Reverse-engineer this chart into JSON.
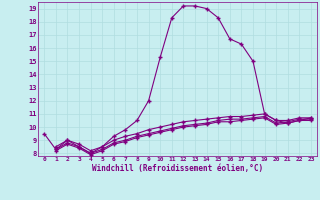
{
  "xlabel": "Windchill (Refroidissement éolien,°C)",
  "bg_color": "#c8eef0",
  "line_color": "#800080",
  "grid_color": "#b0dde0",
  "xlim": [
    -0.5,
    23.5
  ],
  "ylim": [
    7.8,
    19.5
  ],
  "yticks": [
    8,
    9,
    10,
    11,
    12,
    13,
    14,
    15,
    16,
    17,
    18,
    19
  ],
  "xticks": [
    0,
    1,
    2,
    3,
    4,
    5,
    6,
    7,
    8,
    9,
    10,
    11,
    12,
    13,
    14,
    15,
    16,
    17,
    18,
    19,
    20,
    21,
    22,
    23
  ],
  "line1_x": [
    0,
    1,
    2,
    3,
    4,
    5,
    6,
    7,
    8,
    9,
    10,
    11,
    12,
    13,
    14,
    15,
    16,
    17,
    18,
    19,
    20,
    21,
    22,
    23
  ],
  "line1_y": [
    9.5,
    8.3,
    9.0,
    8.5,
    8.0,
    8.5,
    9.3,
    9.8,
    10.5,
    12.0,
    15.3,
    18.3,
    19.2,
    19.2,
    19.0,
    18.3,
    16.7,
    16.3,
    15.0,
    11.0,
    10.5,
    10.3,
    10.5,
    10.7
  ],
  "line2_x": [
    1,
    2,
    3,
    4,
    5,
    6,
    7,
    8,
    9,
    10,
    11,
    12,
    13,
    14,
    15,
    16,
    17,
    18,
    19,
    20,
    21,
    22,
    23
  ],
  "line2_y": [
    8.5,
    9.0,
    8.7,
    8.2,
    8.5,
    9.0,
    9.3,
    9.5,
    9.8,
    10.0,
    10.2,
    10.4,
    10.5,
    10.6,
    10.7,
    10.8,
    10.8,
    10.9,
    11.0,
    10.5,
    10.5,
    10.7,
    10.7
  ],
  "line3_x": [
    1,
    2,
    3,
    4,
    5,
    6,
    7,
    8,
    9,
    10,
    11,
    12,
    13,
    14,
    15,
    16,
    17,
    18,
    19,
    20,
    21,
    22,
    23
  ],
  "line3_y": [
    8.3,
    8.8,
    8.5,
    8.0,
    8.3,
    8.8,
    9.0,
    9.3,
    9.5,
    9.7,
    9.9,
    10.1,
    10.2,
    10.3,
    10.5,
    10.6,
    10.6,
    10.7,
    10.8,
    10.3,
    10.4,
    10.6,
    10.6
  ],
  "line4_x": [
    1,
    2,
    3,
    4,
    5,
    6,
    7,
    8,
    9,
    10,
    11,
    12,
    13,
    14,
    15,
    16,
    17,
    18,
    19,
    20,
    21,
    22,
    23
  ],
  "line4_y": [
    8.2,
    8.7,
    8.4,
    7.9,
    8.2,
    8.7,
    8.9,
    9.2,
    9.4,
    9.6,
    9.8,
    10.0,
    10.1,
    10.2,
    10.4,
    10.4,
    10.5,
    10.6,
    10.7,
    10.2,
    10.3,
    10.5,
    10.5
  ],
  "marker": "+",
  "markersize": 3,
  "linewidth": 0.8
}
